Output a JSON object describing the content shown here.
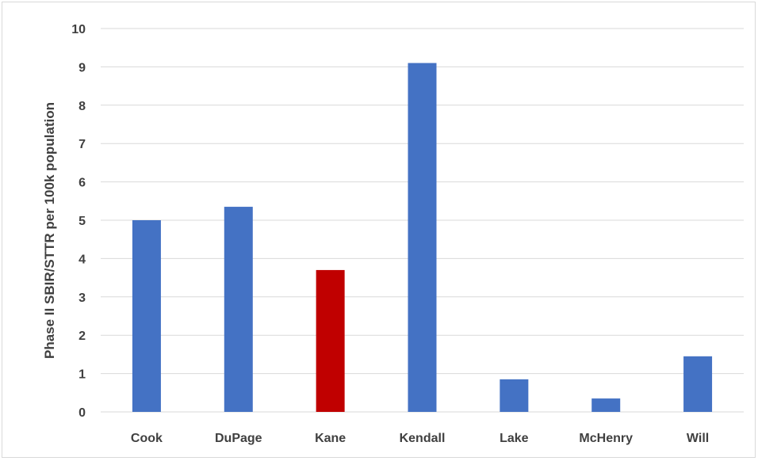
{
  "chart_data": {
    "type": "bar",
    "title": "",
    "xlabel": "",
    "ylabel": "Phase II SBIR/STTR per 100k population",
    "categories": [
      "Cook",
      "DuPage",
      "Kane",
      "Kendall",
      "Lake",
      "McHenry",
      "Will"
    ],
    "values": [
      5.0,
      5.35,
      3.7,
      9.1,
      0.85,
      0.35,
      1.45
    ],
    "ylim": [
      0,
      10
    ],
    "yticks": [
      0,
      1,
      2,
      3,
      4,
      5,
      6,
      7,
      8,
      9,
      10
    ],
    "grid": true,
    "legend": "none",
    "colors": {
      "default_bar": "#4472C4",
      "highlight_bar": "#C00000",
      "grid": "#d9d9d9",
      "text": "#404040"
    },
    "highlight_category": "Kane"
  }
}
